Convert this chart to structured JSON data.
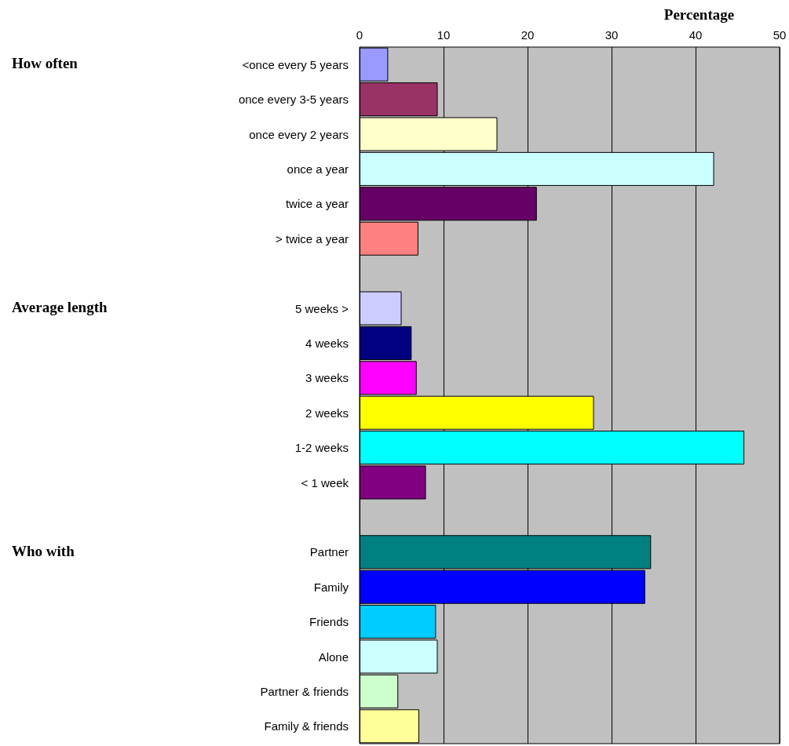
{
  "chart_data": {
    "type": "bar",
    "orientation": "horizontal",
    "xlabel": "Percentage",
    "categories": [
      "<once every 5 years",
      "once every 3-5 years",
      "once every 2 years",
      "once a year",
      "twice a year",
      "> twice a year",
      null,
      "5 weeks >",
      "4 weeks",
      "3 weeks",
      "2 weeks",
      "1-2 weeks",
      "< 1 week",
      null,
      "Partner",
      "Family",
      "Friends",
      "Alone",
      "Partner & friends",
      "Family & friends"
    ],
    "values": [
      3.4,
      9.3,
      16.4,
      42.2,
      21.1,
      7.0,
      null,
      5.0,
      6.2,
      6.8,
      27.9,
      45.8,
      7.9,
      null,
      34.7,
      34.0,
      9.1,
      9.3,
      4.6,
      7.1
    ],
    "colors": [
      "#9999ff",
      "#993366",
      "#ffffcc",
      "#ccffff",
      "#660066",
      "#ff8080",
      null,
      "#ccccff",
      "#000080",
      "#ff00ff",
      "#ffff00",
      "#00ffff",
      "#800080",
      null,
      "#008080",
      "#0000ff",
      "#00ccff",
      "#ccffff",
      "#ccffcc",
      "#ffff99"
    ],
    "xlim": [
      0,
      50
    ],
    "xticks": [
      0,
      10,
      20,
      30,
      40,
      50
    ],
    "grid": "x",
    "annotations": [
      "How often",
      "Average length",
      "Who with"
    ]
  }
}
